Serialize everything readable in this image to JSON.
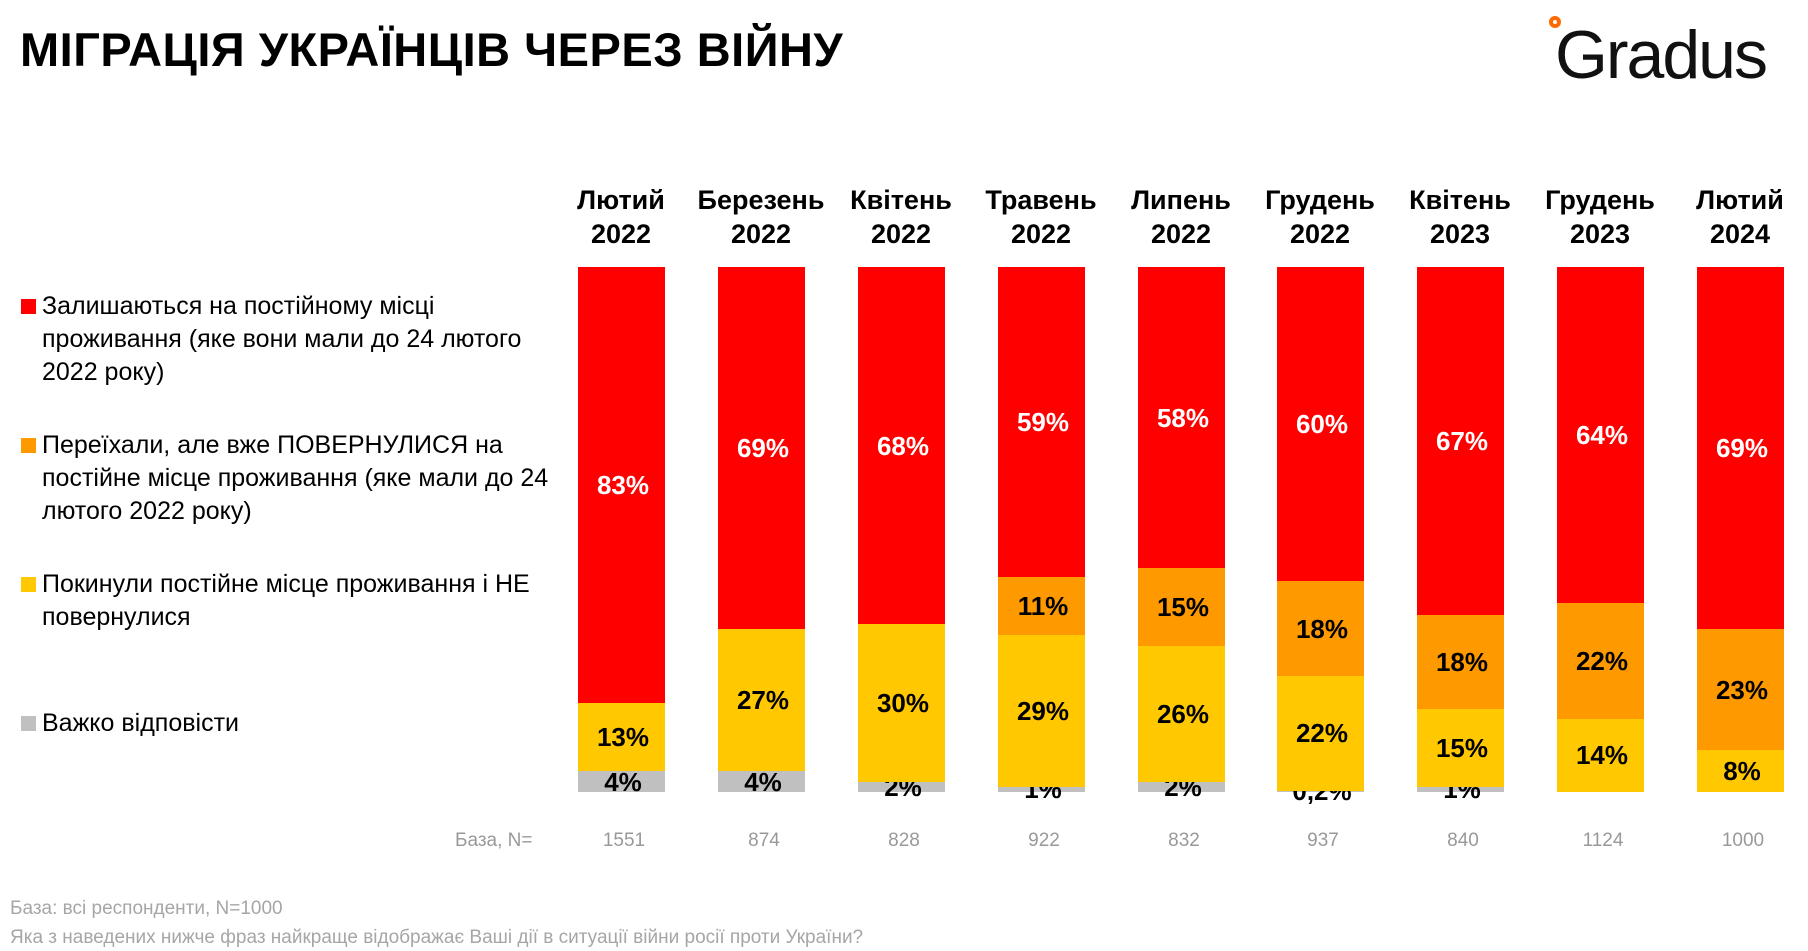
{
  "title": "МІГРАЦІЯ УКРАЇНЦІВ ЧЕРЕЗ ВІЙНУ",
  "logo": "Gradus",
  "footer": {
    "base": "База: всі респонденти, N=1000",
    "question": "Яка з наведених нижче фраз найкраще відображає Ваші дії в ситуації війни росії проти України?"
  },
  "chart_data": {
    "type": "bar",
    "stacked": true,
    "orientation": "vertical",
    "legend_position": "left",
    "categories": [
      [
        "Лютий",
        "2022"
      ],
      [
        "Березень",
        "2022"
      ],
      [
        "Квітень",
        "2022"
      ],
      [
        "Травень",
        "2022"
      ],
      [
        "Липень",
        "2022"
      ],
      [
        "Грудень",
        "2022"
      ],
      [
        "Квітень",
        "2023"
      ],
      [
        "Грудень",
        "2023"
      ],
      [
        "Лютий",
        "2024"
      ]
    ],
    "base_label": "База, N=",
    "base_n": [
      "1551",
      "874",
      "828",
      "922",
      "832",
      "937",
      "840",
      "1124",
      "1000"
    ],
    "series": [
      {
        "name": "Важко відповісти",
        "color": "#C0C0C0",
        "values": [
          4,
          4,
          2,
          1,
          2,
          0.2,
          1,
          null,
          null
        ],
        "labels": [
          "4%",
          "4%",
          "2%",
          "1%",
          "2%",
          "0,2%",
          "1%",
          "",
          ""
        ]
      },
      {
        "name": "Покинули постійне місце проживання і НЕ повернулися",
        "color": "#FFC800",
        "values": [
          13,
          27,
          30,
          29,
          26,
          22,
          15,
          14,
          8
        ],
        "labels": [
          "13%",
          "27%",
          "30%",
          "29%",
          "26%",
          "22%",
          "15%",
          "14%",
          "8%"
        ]
      },
      {
        "name": "Переїхали, але вже ПОВЕРНУЛИСЯ на постійне місце проживання (яке мали до 24 лютого 2022 року)",
        "color": "#FF9900",
        "values": [
          null,
          null,
          null,
          11,
          15,
          18,
          18,
          22,
          23
        ],
        "labels": [
          "",
          "",
          "",
          "11%",
          "15%",
          "18%",
          "18%",
          "22%",
          "23%"
        ]
      },
      {
        "name": "Залишаються на постійному місці проживання (яке вони мали до 24 лютого 2022 року)",
        "color": "#FF0000",
        "values": [
          83,
          69,
          68,
          59,
          58,
          60,
          67,
          64,
          69
        ],
        "labels": [
          "83%",
          "69%",
          "68%",
          "59%",
          "58%",
          "60%",
          "67%",
          "64%",
          "69%"
        ]
      }
    ],
    "legend_order": [
      3,
      2,
      1,
      0
    ]
  }
}
